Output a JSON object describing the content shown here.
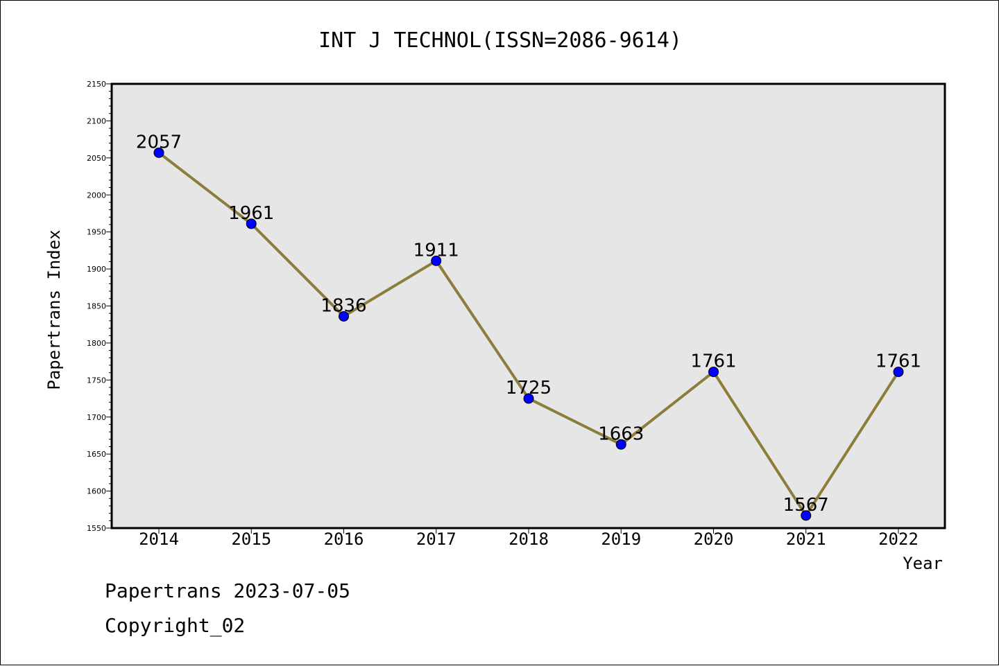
{
  "chart_data": {
    "type": "line",
    "title": "INT J TECHNOL(ISSN=2086-9614)",
    "xlabel": "Year",
    "ylabel": "Papertrans Index",
    "categories": [
      "2014",
      "2015",
      "2016",
      "2017",
      "2018",
      "2019",
      "2020",
      "2021",
      "2022"
    ],
    "values": [
      2057,
      1961,
      1836,
      1911,
      1725,
      1663,
      1761,
      1567,
      1761
    ],
    "ylim": [
      1550,
      2150
    ],
    "yticks": [
      1550,
      1600,
      1650,
      1700,
      1750,
      1800,
      1850,
      1900,
      1950,
      2000,
      2050,
      2100,
      2150
    ],
    "grid": false,
    "colors": {
      "line": "#8B7D3A",
      "marker": "#0000FF",
      "plot_background": "#E6E6E6"
    }
  },
  "footer": {
    "date_line": "Papertrans 2023-07-05",
    "copyright_line": "Copyright_02"
  }
}
